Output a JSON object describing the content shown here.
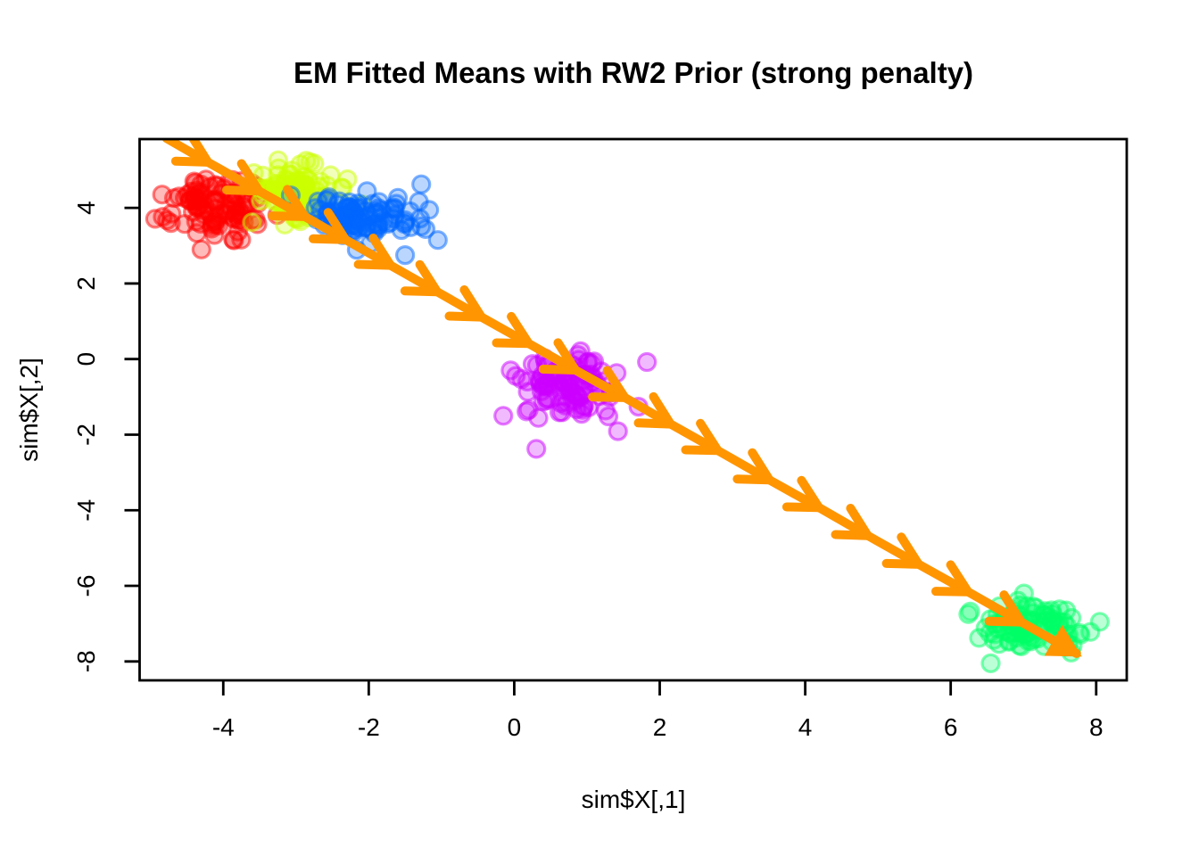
{
  "chart_data": {
    "type": "scatter",
    "title": "EM Fitted Means with RW2 Prior (strong penalty)",
    "xlabel": "sim$X[,1]",
    "ylabel": "sim$X[,2]",
    "xlim": [
      -5.15,
      8.42
    ],
    "ylim": [
      -8.5,
      5.82
    ],
    "x_ticks": [
      "-4",
      "-2",
      "0",
      "2",
      "4",
      "6",
      "8"
    ],
    "x_tick_values": [
      -4,
      -2,
      0,
      2,
      4,
      6,
      8
    ],
    "y_ticks": [
      "4",
      "2",
      "0",
      "-2",
      "-4",
      "-6",
      "-8"
    ],
    "y_tick_values": [
      4,
      2,
      0,
      -2,
      -4,
      -6,
      -8
    ],
    "grid": "off",
    "legend": "none",
    "axis_color": "#000000",
    "background_color": "#ffffff",
    "point_style": {
      "radius": 9.5,
      "fill_alpha": 0.27,
      "stroke_alpha": 0.5,
      "stroke_width": 3.2
    },
    "clusters": [
      {
        "name": "cluster-red",
        "color": "#FF0000",
        "center": [
          -4.05,
          4.05
        ],
        "sd": [
          0.34,
          0.38
        ],
        "n": 100,
        "outliers": [
          [
            -4.3,
            2.9
          ],
          [
            -4.72,
            3.6
          ]
        ]
      },
      {
        "name": "cluster-yellow",
        "color": "#CCFF00",
        "center": [
          -3.05,
          4.4
        ],
        "sd": [
          0.3,
          0.35
        ],
        "n": 100,
        "outliers": [
          [
            -2.86,
            5.25
          ],
          [
            -2.3,
            4.05
          ]
        ]
      },
      {
        "name": "cluster-blue",
        "color": "#0066FF",
        "center": [
          -2.1,
          3.75
        ],
        "sd": [
          0.34,
          0.3
        ],
        "n": 100,
        "outliers": [
          [
            -1.43,
            3.91
          ],
          [
            -1.22,
            3.44
          ],
          [
            -1.5,
            2.75
          ],
          [
            -1.05,
            3.15
          ]
        ]
      },
      {
        "name": "cluster-magenta",
        "color": "#CC00FF",
        "center": [
          0.78,
          -0.78
        ],
        "sd": [
          0.32,
          0.38
        ],
        "n": 100,
        "outliers": [
          [
            -0.15,
            -1.5
          ],
          [
            -0.05,
            -0.3
          ]
        ]
      },
      {
        "name": "cluster-green",
        "color": "#00FF66",
        "center": [
          7.1,
          -7.1
        ],
        "sd": [
          0.38,
          0.32
        ],
        "n": 100,
        "outliers": [
          [
            6.55,
            -8.05
          ],
          [
            7.92,
            -7.22
          ],
          [
            8.05,
            -6.95
          ]
        ]
      }
    ],
    "fitted_means_path": {
      "name": "em-fitted-means-path",
      "color": "#FF9500",
      "line_width": 10,
      "points": [
        [
          -4.78,
          5.84
        ],
        [
          -4.21,
          5.21
        ],
        [
          -3.51,
          4.45
        ],
        [
          -2.88,
          3.77
        ],
        [
          -2.32,
          3.16
        ],
        [
          -1.7,
          2.48
        ],
        [
          -1.06,
          1.78
        ],
        [
          -0.45,
          1.11
        ],
        [
          0.2,
          0.41
        ],
        [
          0.84,
          -0.29
        ],
        [
          1.52,
          -1.02
        ],
        [
          2.15,
          -1.72
        ],
        [
          2.8,
          -2.42
        ],
        [
          3.51,
          -3.2
        ],
        [
          4.19,
          -3.93
        ],
        [
          4.86,
          -4.67
        ],
        [
          5.56,
          -5.43
        ],
        [
          6.24,
          -6.16
        ],
        [
          6.97,
          -6.96
        ],
        [
          7.73,
          -7.79
        ]
      ]
    }
  }
}
